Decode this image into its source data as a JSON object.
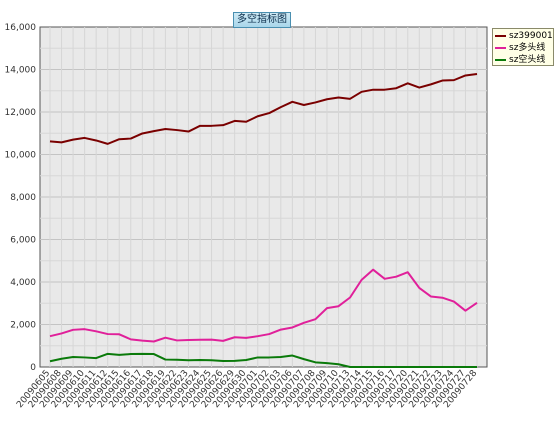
{
  "chart_data": {
    "type": "line",
    "title": "多空指标图",
    "x": [
      "20090605",
      "20090608",
      "20090609",
      "20090610",
      "20090611",
      "20090612",
      "20090615",
      "20090616",
      "20090617",
      "20090618",
      "20090619",
      "20090622",
      "20090623",
      "20090624",
      "20090625",
      "20090626",
      "20090629",
      "20090630",
      "20090701",
      "20090702",
      "20090703",
      "20090706",
      "20090707",
      "20090708",
      "20090709",
      "20090710",
      "20090713",
      "20090714",
      "20090715",
      "20090716",
      "20090717",
      "20090720",
      "20090721",
      "20090722",
      "20090723",
      "20090724",
      "20090727",
      "20090728"
    ],
    "yticks": [
      "0",
      "2,000",
      "4,000",
      "6,000",
      "8,000",
      "10,000",
      "12,000",
      "14,000",
      "16,000"
    ],
    "ylim": [
      0,
      16000
    ],
    "grid": true,
    "legend_position": "top-right",
    "series": [
      {
        "name": "sz399001",
        "color": "#7a0000",
        "values": [
          10620,
          10570,
          10700,
          10780,
          10660,
          10500,
          10720,
          10750,
          10990,
          11100,
          11200,
          11150,
          11080,
          11350,
          11350,
          11380,
          11580,
          11540,
          11800,
          11950,
          12230,
          12480,
          12330,
          12450,
          12600,
          12680,
          12620,
          12950,
          13050,
          13050,
          13120,
          13350,
          13150,
          13300,
          13480,
          13500,
          13720,
          13790
        ]
      },
      {
        "name": "sz多头线",
        "color": "#e0209a",
        "values": [
          1450,
          1580,
          1750,
          1780,
          1680,
          1550,
          1540,
          1300,
          1240,
          1200,
          1380,
          1250,
          1270,
          1280,
          1290,
          1230,
          1400,
          1370,
          1450,
          1550,
          1760,
          1860,
          2080,
          2250,
          2770,
          2860,
          3270,
          4100,
          4580,
          4150,
          4250,
          4460,
          3720,
          3320,
          3260,
          3080,
          2650,
          3020
        ]
      },
      {
        "name": "sz空头线",
        "color": "#0a7a0a",
        "values": [
          270,
          390,
          470,
          450,
          420,
          620,
          570,
          610,
          620,
          610,
          350,
          340,
          320,
          330,
          320,
          280,
          290,
          330,
          450,
          450,
          470,
          540,
          370,
          220,
          180,
          130,
          0,
          0,
          0,
          0,
          0,
          0,
          0,
          0,
          0,
          0,
          0,
          0
        ]
      }
    ]
  }
}
